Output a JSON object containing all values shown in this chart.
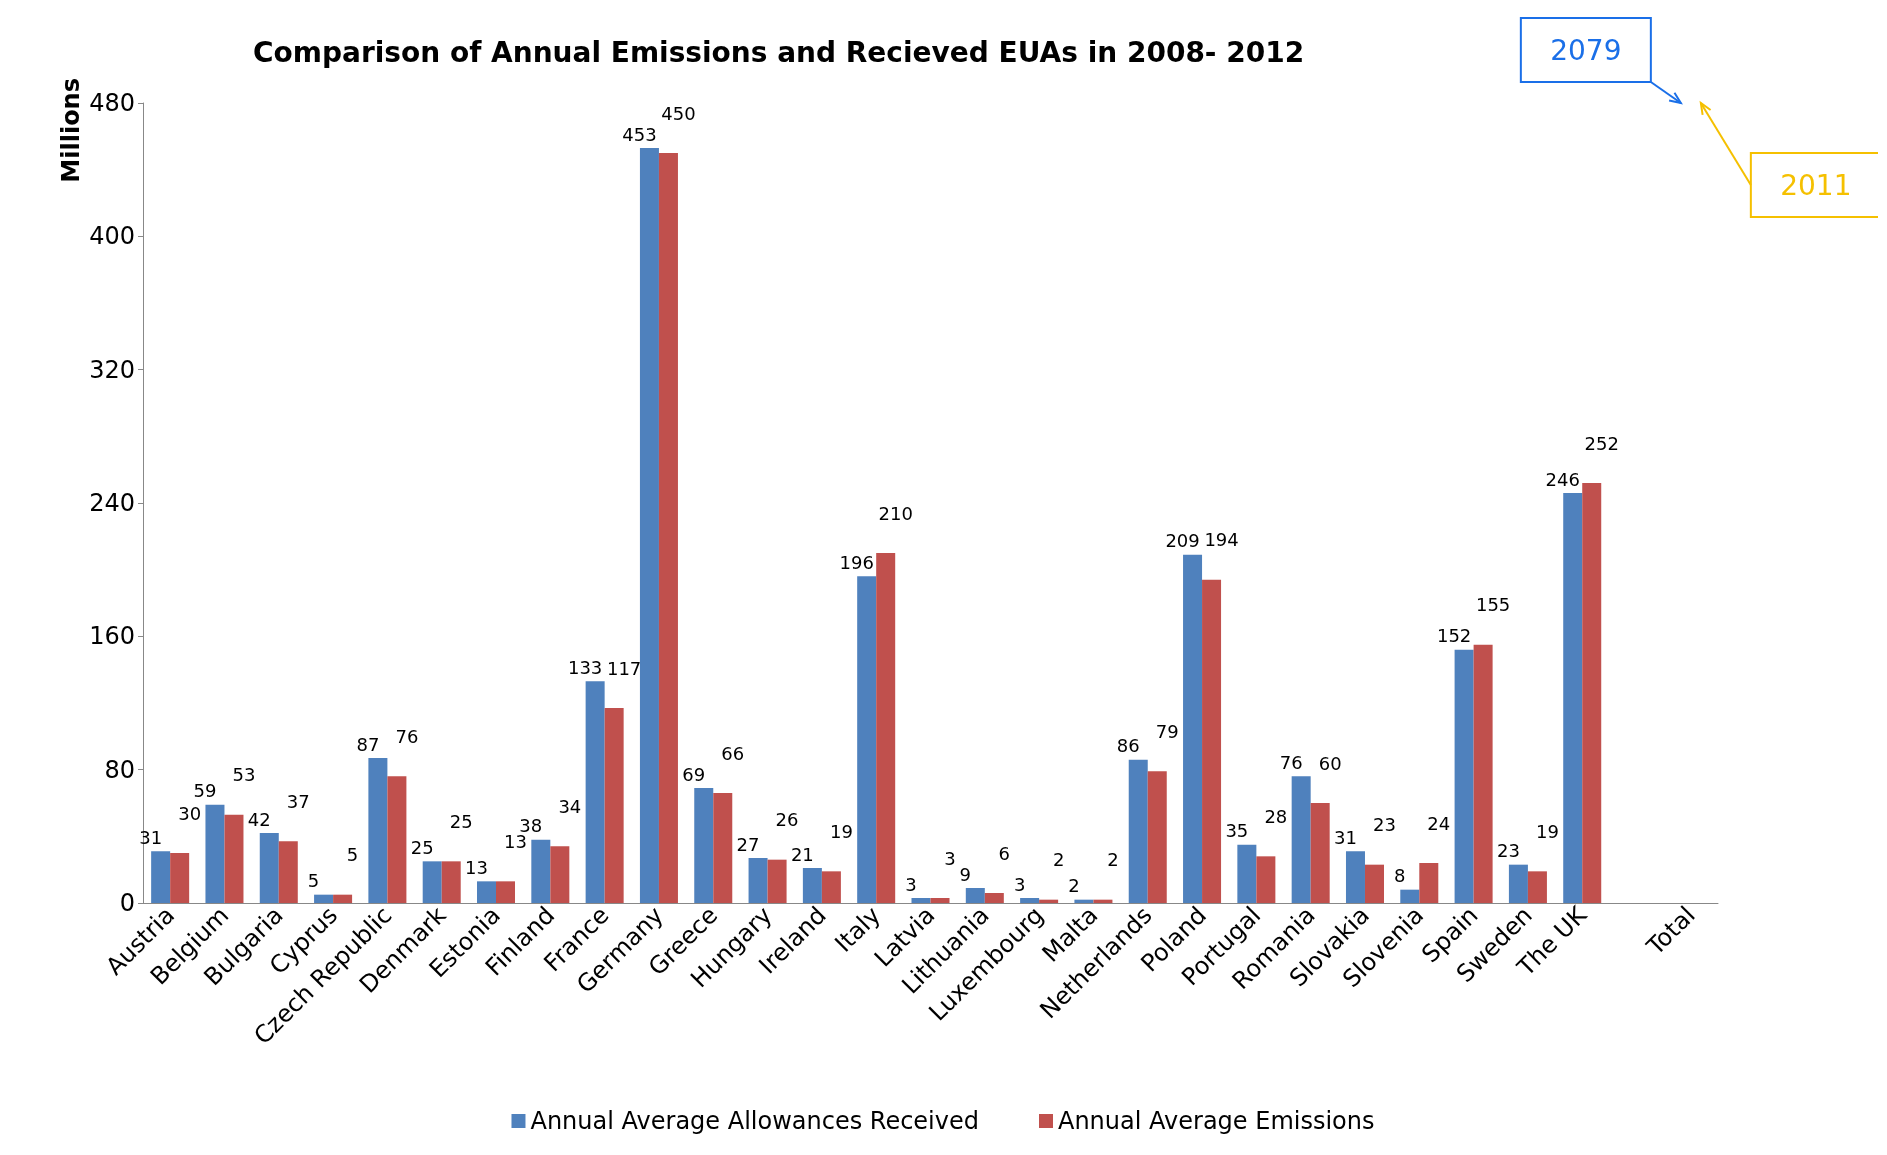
{
  "chart_data": {
    "type": "bar",
    "title": "Comparison of Annual Emissions and Recieved EUAs in 2008- 2012",
    "ylabel": "Millions",
    "categories": [
      "Austria",
      "Belgium",
      "Bulgaria",
      "Cyprus",
      "Czech Republic",
      "Denmark",
      "Estonia",
      "Finland",
      "France",
      "Germany",
      "Greece",
      "Hungary",
      "Ireland",
      "Italy",
      "Latvia",
      "Lithuania",
      "Luxembourg",
      "Malta",
      "Netherlands",
      "Poland",
      "Portugal",
      "Romania",
      "Slovakia",
      "Slovenia",
      "Spain",
      "Sweden",
      "The UK",
      null,
      "Total"
    ],
    "series": [
      {
        "name": "Annual Average Allowances Received",
        "color": "#4f81bd",
        "values": [
          31,
          59,
          42,
          5,
          87,
          25,
          13,
          38,
          133,
          453,
          69,
          27,
          21,
          196,
          3,
          9,
          3,
          2,
          86,
          209,
          35,
          76,
          31,
          8,
          152,
          23,
          246,
          null,
          null
        ]
      },
      {
        "name": "Annual Average Emissions",
        "color": "#c0504d",
        "values": [
          30,
          53,
          37,
          5,
          76,
          25,
          13,
          34,
          117,
          450,
          66,
          26,
          19,
          210,
          3,
          6,
          2,
          2,
          79,
          194,
          28,
          60,
          23,
          24,
          155,
          19,
          252,
          null,
          null
        ]
      }
    ],
    "annotations": [
      "2079",
      "2011"
    ],
    "ylim": [
      0,
      480
    ],
    "yticks": [
      0,
      80,
      160,
      240,
      320,
      400,
      480
    ],
    "grid": false,
    "legend": "bottom",
    "data_labels": true
  }
}
